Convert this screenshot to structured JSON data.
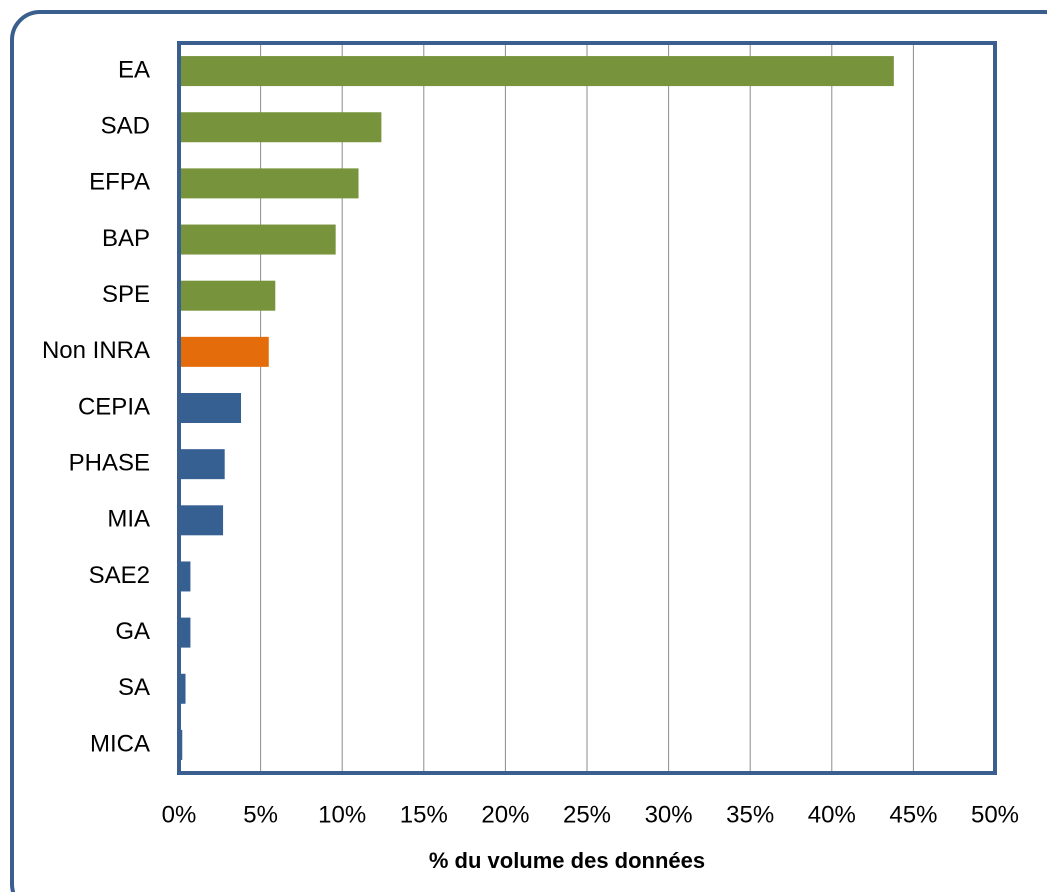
{
  "chart_data": {
    "type": "barh",
    "categories": [
      "EA",
      "SAD",
      "EFPA",
      "BAP",
      "SPE",
      "Non INRA",
      "CEPIA",
      "PHASE",
      "MIA",
      "SAE2",
      "GA",
      "SA",
      "MICA"
    ],
    "values": [
      43.8,
      12.4,
      11.0,
      9.6,
      5.9,
      5.5,
      3.8,
      2.8,
      2.7,
      0.7,
      0.7,
      0.4,
      0.2
    ],
    "colors": [
      "#77933c",
      "#77933c",
      "#77933c",
      "#77933c",
      "#77933c",
      "#e46c0a",
      "#376092",
      "#376092",
      "#376092",
      "#376092",
      "#376092",
      "#376092",
      "#376092"
    ],
    "xlim": [
      0,
      50
    ],
    "xticks": [
      {
        "value": 0,
        "label": "0%"
      },
      {
        "value": 5,
        "label": "5%"
      },
      {
        "value": 10,
        "label": "10%"
      },
      {
        "value": 15,
        "label": "15%"
      },
      {
        "value": 20,
        "label": "20%"
      },
      {
        "value": 25,
        "label": "25%"
      },
      {
        "value": 30,
        "label": "30%"
      },
      {
        "value": 35,
        "label": "35%"
      },
      {
        "value": 40,
        "label": "40%"
      },
      {
        "value": 45,
        "label": "45%"
      },
      {
        "value": 50,
        "label": "50%"
      }
    ],
    "xlabel": "% du volume des données",
    "grid": true
  }
}
